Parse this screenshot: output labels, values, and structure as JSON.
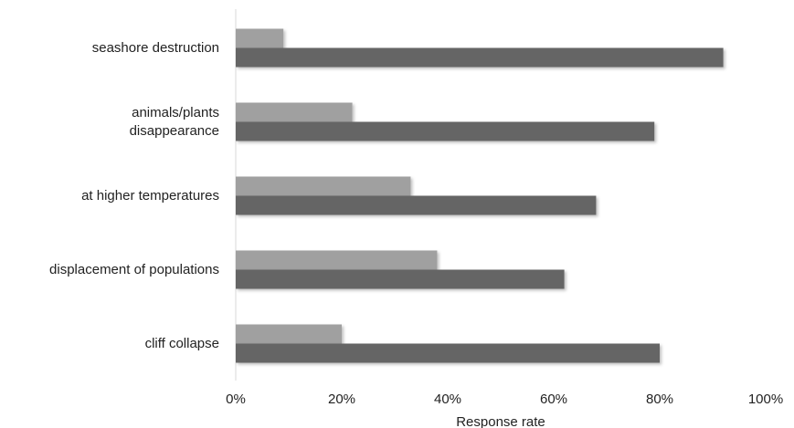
{
  "chart_data": {
    "type": "barh",
    "categories": [
      "seashore destruction",
      "animals/plants\ndisappearance",
      "at higher temperatures",
      "displacement of populations",
      "cliff collapse"
    ],
    "series": [
      {
        "color": "#a0a0a0",
        "values": [
          9,
          22,
          33,
          38,
          20
        ]
      },
      {
        "color": "#656565",
        "values": [
          92,
          79,
          68,
          62,
          80
        ]
      }
    ],
    "xlabel": "Response rate",
    "xlim": [
      0,
      100
    ],
    "xticks": [
      {
        "value": 0,
        "label": "0%"
      },
      {
        "value": 20,
        "label": "20%"
      },
      {
        "value": 40,
        "label": "40%"
      },
      {
        "value": 60,
        "label": "60%"
      },
      {
        "value": 80,
        "label": "80%"
      },
      {
        "value": 100,
        "label": "100%"
      }
    ]
  }
}
